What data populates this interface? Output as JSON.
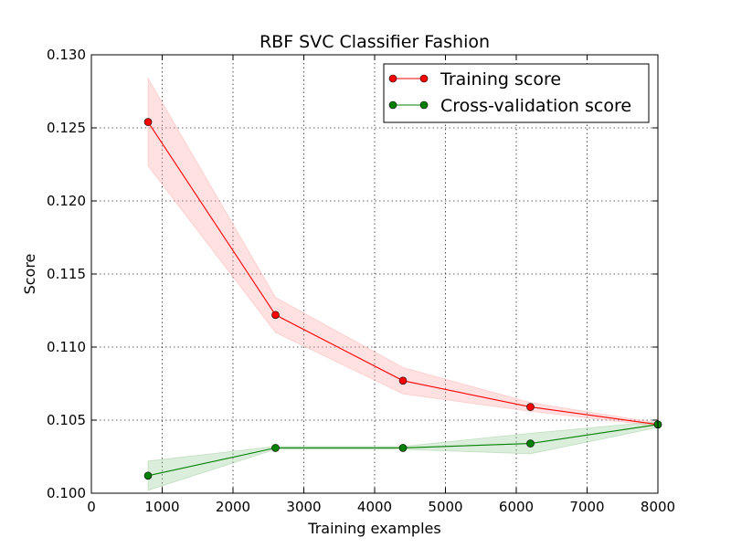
{
  "chart_data": {
    "type": "line",
    "title": "RBF SVC Classifier Fashion",
    "xlabel": "Training examples",
    "ylabel": "Score",
    "xlim": [
      0,
      8000
    ],
    "ylim": [
      0.1,
      0.13
    ],
    "xticks": [
      0,
      1000,
      2000,
      3000,
      4000,
      5000,
      6000,
      7000,
      8000
    ],
    "xtick_labels": [
      "0",
      "1000",
      "2000",
      "3000",
      "4000",
      "5000",
      "6000",
      "7000",
      "8000"
    ],
    "yticks": [
      0.1,
      0.105,
      0.11,
      0.115,
      0.12,
      0.125,
      0.13
    ],
    "ytick_labels": [
      "0.100",
      "0.105",
      "0.110",
      "0.115",
      "0.120",
      "0.125",
      "0.130"
    ],
    "grid": true,
    "legend_position": "top-right",
    "x": [
      800,
      2600,
      4400,
      6200,
      8000
    ],
    "series": [
      {
        "name": "Training score",
        "color": "#ff0000",
        "band_color": "#ffaaaa",
        "values": [
          0.1254,
          0.1122,
          0.1077,
          0.1059,
          0.1047
        ],
        "lower": [
          0.1224,
          0.111,
          0.1068,
          0.1056,
          0.1046
        ],
        "upper": [
          0.1284,
          0.1134,
          0.1086,
          0.1062,
          0.1048
        ]
      },
      {
        "name": "Cross-validation score",
        "color": "#008000",
        "band_color": "#99cc99",
        "values": [
          0.1012,
          0.1031,
          0.1031,
          0.1034,
          0.1047
        ],
        "lower": [
          0.1002,
          0.103,
          0.103,
          0.1027,
          0.1045
        ],
        "upper": [
          0.1022,
          0.1032,
          0.1032,
          0.1041,
          0.1049
        ]
      }
    ]
  }
}
